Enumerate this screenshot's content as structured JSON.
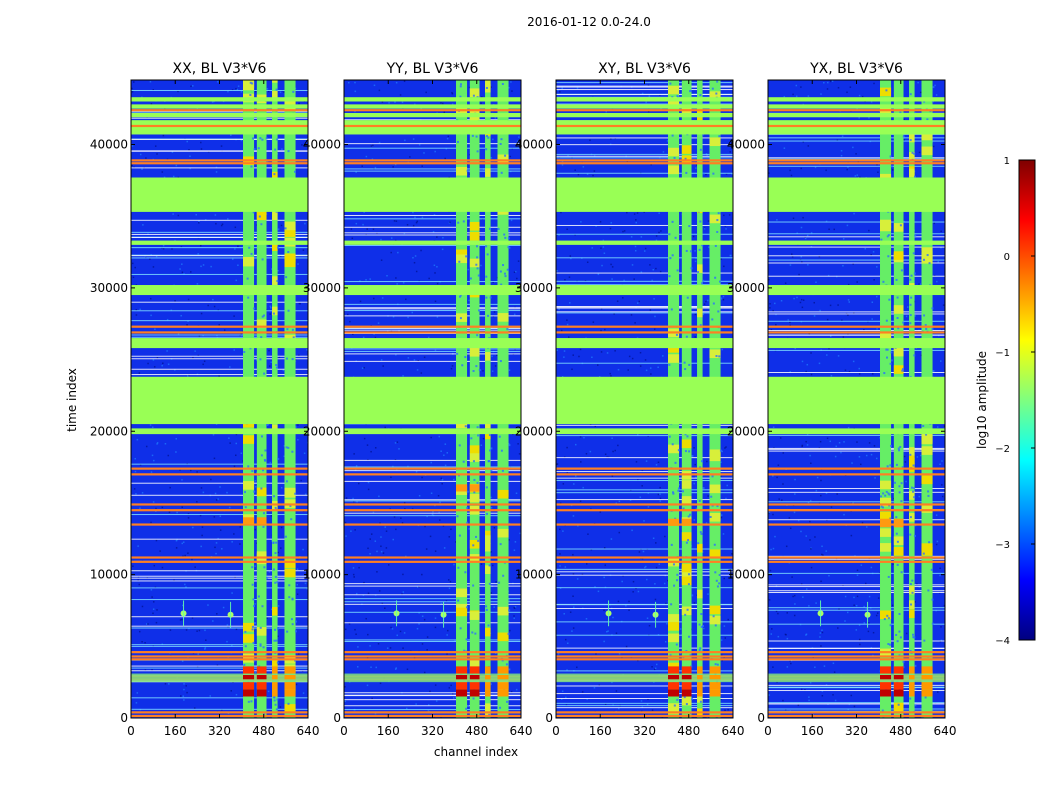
{
  "figure": {
    "suptitle": "2016-01-12 0.0-24.0",
    "ylabel": "time index",
    "xlabel": "channel index"
  },
  "chart_data": [
    {
      "type": "heatmap",
      "title": "XX, BL V3*V6",
      "xlim": [
        0,
        640
      ],
      "ylim": [
        0,
        44500
      ],
      "xticks": [
        0,
        160,
        320,
        480,
        640
      ],
      "yticks": [
        0,
        10000,
        20000,
        30000,
        40000
      ],
      "ytick_labels": [
        "0",
        "10000",
        "20000",
        "30000",
        "40000"
      ],
      "peak_band": [
        13500,
        14000
      ]
    },
    {
      "type": "heatmap",
      "title": "YY, BL V3*V6",
      "xlim": [
        0,
        640
      ],
      "ylim": [
        0,
        44500
      ],
      "xticks": [
        0,
        160,
        320,
        480,
        640
      ],
      "yticks": [
        0,
        10000,
        20000,
        30000,
        40000
      ],
      "ytick_labels": [
        "0",
        "10000",
        "20000",
        "30000",
        "40000"
      ],
      "peak_band": [
        15800,
        16300
      ]
    },
    {
      "type": "heatmap",
      "title": "XY, BL V3*V6",
      "xlim": [
        0,
        640
      ],
      "ylim": [
        0,
        44500
      ],
      "xticks": [
        0,
        160,
        320,
        480,
        640
      ],
      "yticks": [
        0,
        10000,
        20000,
        30000,
        40000
      ],
      "ytick_labels": [
        "0",
        "10000",
        "20000",
        "30000",
        "40000"
      ],
      "peak_band": [
        13400,
        13900
      ]
    },
    {
      "type": "heatmap",
      "title": "YX, BL V3*V6",
      "xlim": [
        0,
        640
      ],
      "ylim": [
        0,
        44500
      ],
      "xticks": [
        0,
        160,
        320,
        480,
        640
      ],
      "yticks": [
        0,
        10000,
        20000,
        30000,
        40000
      ],
      "ytick_labels": [
        "0",
        "10000",
        "20000",
        "30000",
        "40000"
      ],
      "peak_band": [
        13300,
        13900
      ]
    }
  ],
  "common_features": {
    "flagged_rows": [
      [
        35300,
        37700
      ],
      [
        40700,
        41700
      ],
      [
        20500,
        23800
      ],
      [
        25800,
        26500
      ],
      [
        29500,
        30200
      ],
      [
        41900,
        42200
      ],
      [
        42500,
        42800
      ],
      [
        43000,
        43300
      ],
      [
        19800,
        20200
      ],
      [
        33000,
        33300
      ]
    ],
    "orange_rows": [
      38900,
      38700,
      27300,
      26900,
      17400,
      17000,
      14900,
      14500,
      13500,
      11200,
      10900,
      4600,
      4300,
      4100,
      2900,
      2700,
      400,
      150,
      41300,
      42400
    ],
    "rfi_columns": [
      [
        405,
        445
      ],
      [
        455,
        490
      ],
      [
        510,
        530
      ],
      [
        555,
        595
      ]
    ],
    "hot_rows": [
      [
        1500,
        2000
      ],
      [
        2000,
        2500
      ],
      [
        2700,
        3000
      ],
      [
        3100,
        3600
      ]
    ],
    "sources": [
      {
        "channel": 190,
        "time": 7300
      },
      {
        "channel": 360,
        "time": 7200
      }
    ]
  },
  "colorbar": {
    "label": "log10 amplitude",
    "range": [
      -4,
      1
    ],
    "ticks": [
      1,
      0,
      -1,
      -2,
      -3,
      -4
    ],
    "tick_labels": [
      "1",
      "0",
      "−1",
      "−2",
      "−3",
      "−4"
    ],
    "stops": [
      "#00007f",
      "#0000ff",
      "#007fff",
      "#00ffff",
      "#7fff7f",
      "#ffff00",
      "#ff7f00",
      "#ff0000",
      "#7f0000"
    ]
  }
}
